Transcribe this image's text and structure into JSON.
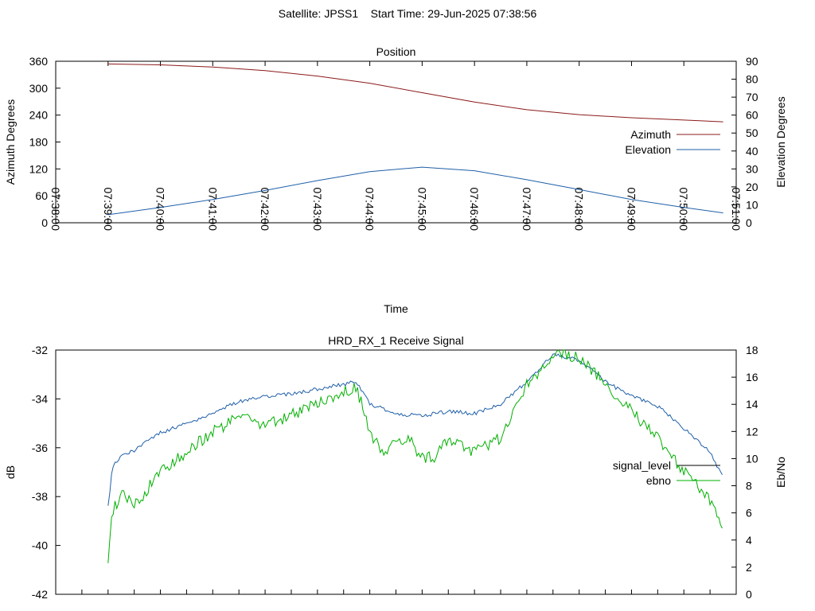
{
  "page_title": "Satellite: JPSS1    Start Time: 29-Jun-2025 07:38:56",
  "chart_data": [
    {
      "type": "line",
      "title": "Position",
      "xlabel": "Time",
      "ylabel_left": "Azimuth Degrees",
      "ylabel_right": "Elevation Degrees",
      "x_ticks": [
        "07:38:00",
        "07:39:00",
        "07:40:00",
        "07:41:00",
        "07:42:00",
        "07:43:00",
        "07:44:00",
        "07:45:00",
        "07:46:00",
        "07:47:00",
        "07:48:00",
        "07:49:00",
        "07:50:00",
        "07:51:00"
      ],
      "xlim": [
        "07:38:00",
        "07:51:00"
      ],
      "ylim_left": [
        0,
        360
      ],
      "ylim_right": [
        0,
        90
      ],
      "y_ticks_left": [
        "0",
        "60",
        "120",
        "180",
        "240",
        "300",
        "360"
      ],
      "y_ticks_right": [
        "0",
        "10",
        "20",
        "30",
        "40",
        "50",
        "60",
        "70",
        "80",
        "90"
      ],
      "legend_position": "right",
      "grid": false,
      "series": [
        {
          "name": "Azimuth",
          "axis": "left",
          "color": "#8b1a1a",
          "points": [
            [
              "07:39:00",
              354
            ],
            [
              "07:40:00",
              352
            ],
            [
              "07:41:00",
              347
            ],
            [
              "07:42:00",
              339
            ],
            [
              "07:43:00",
              327
            ],
            [
              "07:44:00",
              311
            ],
            [
              "07:45:00",
              290
            ],
            [
              "07:46:00",
              269
            ],
            [
              "07:47:00",
              252
            ],
            [
              "07:48:00",
              241
            ],
            [
              "07:49:00",
              234
            ],
            [
              "07:50:00",
              229
            ],
            [
              "07:50:45",
              225
            ]
          ]
        },
        {
          "name": "Elevation",
          "axis": "right",
          "color": "#1f5fa8",
          "points": [
            [
              "07:39:00",
              4.5
            ],
            [
              "07:40:00",
              8.5
            ],
            [
              "07:41:00",
              13
            ],
            [
              "07:42:00",
              18
            ],
            [
              "07:43:00",
              23.5
            ],
            [
              "07:44:00",
              28.5
            ],
            [
              "07:45:00",
              31
            ],
            [
              "07:46:00",
              29
            ],
            [
              "07:47:00",
              24
            ],
            [
              "07:48:00",
              18.5
            ],
            [
              "07:49:00",
              13
            ],
            [
              "07:50:00",
              8.5
            ],
            [
              "07:50:45",
              5.5
            ]
          ]
        }
      ]
    },
    {
      "type": "line",
      "title": "HRD_RX_1 Receive Signal",
      "ylabel_left": "dB",
      "ylabel_right": "Eb/No",
      "xlim": [
        "07:38:00",
        "07:51:00"
      ],
      "ylim_left": [
        -42,
        -32
      ],
      "ylim_right": [
        0,
        18
      ],
      "y_ticks_left": [
        "-42",
        "-40",
        "-38",
        "-36",
        "-34",
        "-32"
      ],
      "y_ticks_right": [
        "0",
        "2",
        "4",
        "6",
        "8",
        "10",
        "12",
        "14",
        "16",
        "18"
      ],
      "legend_position": "right",
      "grid": false,
      "series": [
        {
          "name": "signal_level",
          "axis": "left",
          "color": "#1f5fa8",
          "points": [
            [
              "07:39:00",
              -38.4
            ],
            [
              "07:39:05",
              -36.8
            ],
            [
              "07:39:15",
              -36.3
            ],
            [
              "07:39:30",
              -36.1
            ],
            [
              "07:40:00",
              -35.4
            ],
            [
              "07:40:30",
              -35.0
            ],
            [
              "07:41:00",
              -34.6
            ],
            [
              "07:41:30",
              -34.1
            ],
            [
              "07:42:00",
              -33.9
            ],
            [
              "07:42:30",
              -33.8
            ],
            [
              "07:43:00",
              -33.6
            ],
            [
              "07:43:30",
              -33.4
            ],
            [
              "07:43:45",
              -33.3
            ],
            [
              "07:44:00",
              -34.2
            ],
            [
              "07:44:30",
              -34.6
            ],
            [
              "07:45:00",
              -34.7
            ],
            [
              "07:45:30",
              -34.5
            ],
            [
              "07:46:00",
              -34.6
            ],
            [
              "07:46:30",
              -34.2
            ],
            [
              "07:47:00",
              -33.3
            ],
            [
              "07:47:30",
              -32.2
            ],
            [
              "07:48:00",
              -32.4
            ],
            [
              "07:48:30",
              -33.3
            ],
            [
              "07:49:00",
              -33.9
            ],
            [
              "07:49:30",
              -34.3
            ],
            [
              "07:50:00",
              -35.2
            ],
            [
              "07:50:30",
              -36.2
            ],
            [
              "07:50:45",
              -37.2
            ]
          ]
        },
        {
          "name": "ebno",
          "axis": "right",
          "color": "#00b000",
          "points": [
            [
              "07:39:00",
              2.5
            ],
            [
              "07:39:05",
              6
            ],
            [
              "07:39:15",
              7.5
            ],
            [
              "07:39:30",
              6.5
            ],
            [
              "07:40:00",
              9
            ],
            [
              "07:40:30",
              10.5
            ],
            [
              "07:41:00",
              12
            ],
            [
              "07:41:30",
              13
            ],
            [
              "07:42:00",
              12.5
            ],
            [
              "07:42:30",
              13.2
            ],
            [
              "07:43:00",
              14
            ],
            [
              "07:43:30",
              15
            ],
            [
              "07:43:45",
              15.2
            ],
            [
              "07:44:00",
              12
            ],
            [
              "07:44:15",
              10.5
            ],
            [
              "07:44:30",
              11.2
            ],
            [
              "07:44:45",
              11.5
            ],
            [
              "07:45:00",
              10
            ],
            [
              "07:45:15",
              10.2
            ],
            [
              "07:45:30",
              11.5
            ],
            [
              "07:46:00",
              10.5
            ],
            [
              "07:46:30",
              11.5
            ],
            [
              "07:47:00",
              15.5
            ],
            [
              "07:47:15",
              16.5
            ],
            [
              "07:47:30",
              17.8
            ],
            [
              "07:48:00",
              17.5
            ],
            [
              "07:48:15",
              16.5
            ],
            [
              "07:48:30",
              15.5
            ],
            [
              "07:49:00",
              13.5
            ],
            [
              "07:49:30",
              11.5
            ],
            [
              "07:50:00",
              9
            ],
            [
              "07:50:30",
              7
            ],
            [
              "07:50:45",
              4.5
            ]
          ]
        }
      ]
    }
  ]
}
